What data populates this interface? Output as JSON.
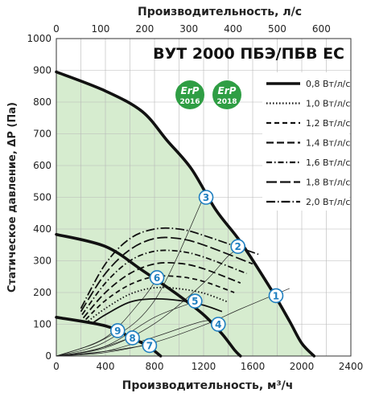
{
  "chart_data": {
    "type": "line",
    "title": "ВУТ 2000 ПБЭ/ПБВ ЕС",
    "xlabel": "Производительность, м³/ч",
    "x2label": "Производительность, л/с",
    "ylabel": "Статическое давление, ΔP (Па)",
    "xlim": [
      0,
      2400
    ],
    "x2lim": [
      0,
      666.7
    ],
    "ylim": [
      0,
      1000
    ],
    "xticks": [
      "0",
      "400",
      "800",
      "1200",
      "1600",
      "2000",
      "2400"
    ],
    "x2ticks": [
      "0",
      "100",
      "200",
      "300",
      "400",
      "500",
      "600"
    ],
    "yticks": [
      "0",
      "100",
      "200",
      "300",
      "400",
      "500",
      "600",
      "700",
      "800",
      "900",
      "1000"
    ],
    "badges": [
      {
        "top": "ErP",
        "bottom": "2016",
        "color": "#2f9e44"
      },
      {
        "top": "ErP",
        "bottom": "2018",
        "color": "#2f9e44"
      }
    ],
    "legend": [
      {
        "label": "0,8 Вт/л/с",
        "dash": "solid"
      },
      {
        "label": "1,0 Вт/л/с",
        "dash": "dotted"
      },
      {
        "label": "1,2 Вт/л/с",
        "dash": "dashed"
      },
      {
        "label": "1,4 Вт/л/с",
        "dash": "longdash"
      },
      {
        "label": "1,6 Вт/л/с",
        "dash": "dashdot"
      },
      {
        "label": "1,8 Вт/л/с",
        "dash": "longlongdash"
      },
      {
        "label": "2,0 Вт/л/с",
        "dash": "longdashdot"
      }
    ],
    "fan_curves": [
      {
        "name": "max",
        "points": [
          [
            0,
            895
          ],
          [
            400,
            835
          ],
          [
            700,
            770
          ],
          [
            900,
            680
          ],
          [
            1100,
            590
          ],
          [
            1300,
            460
          ],
          [
            1500,
            360
          ],
          [
            1750,
            210
          ],
          [
            1900,
            110
          ],
          [
            2000,
            40
          ],
          [
            2100,
            0
          ]
        ]
      },
      {
        "name": "mid",
        "points": [
          [
            0,
            383
          ],
          [
            400,
            345
          ],
          [
            700,
            270
          ],
          [
            1000,
            190
          ],
          [
            1200,
            130
          ],
          [
            1350,
            70
          ],
          [
            1450,
            20
          ],
          [
            1500,
            0
          ]
        ]
      },
      {
        "name": "low",
        "points": [
          [
            0,
            122
          ],
          [
            400,
            95
          ],
          [
            600,
            60
          ],
          [
            750,
            30
          ],
          [
            850,
            0
          ]
        ]
      }
    ],
    "system_curves": [
      {
        "label": "3",
        "points": [
          [
            0,
            0
          ],
          [
            400,
            45
          ],
          [
            800,
            175
          ],
          [
            1200,
            500
          ]
        ]
      },
      {
        "label": "2",
        "points": [
          [
            0,
            0
          ],
          [
            400,
            26
          ],
          [
            800,
            102
          ],
          [
            1200,
            230
          ],
          [
            1400,
            315
          ],
          [
            1500,
            340
          ]
        ]
      },
      {
        "label": "1",
        "points": [
          [
            0,
            0
          ],
          [
            400,
            11
          ],
          [
            800,
            43
          ],
          [
            1200,
            97
          ],
          [
            1500,
            148
          ],
          [
            1900,
            213
          ]
        ]
      },
      {
        "label": "6",
        "points": [
          [
            0,
            0
          ],
          [
            400,
            58
          ],
          [
            700,
            179
          ],
          [
            820,
            245
          ]
        ]
      },
      {
        "label": "5",
        "points": [
          [
            0,
            0
          ],
          [
            400,
            31
          ],
          [
            800,
            122
          ],
          [
            1120,
            170
          ]
        ]
      },
      {
        "label": "4",
        "points": [
          [
            0,
            0
          ],
          [
            400,
            15
          ],
          [
            800,
            60
          ],
          [
            1200,
            110
          ],
          [
            1330,
            100
          ]
        ]
      },
      {
        "label": "9",
        "points": [
          [
            0,
            0
          ],
          [
            300,
            37
          ],
          [
            500,
            78
          ]
        ]
      },
      {
        "label": "8",
        "points": [
          [
            0,
            0
          ],
          [
            300,
            18
          ],
          [
            600,
            57
          ]
        ]
      },
      {
        "label": "7",
        "points": [
          [
            0,
            0
          ],
          [
            400,
            15
          ],
          [
            750,
            35
          ]
        ]
      }
    ],
    "markers": [
      {
        "label": "1",
        "x": 1790,
        "y": 190
      },
      {
        "label": "2",
        "x": 1480,
        "y": 345
      },
      {
        "label": "3",
        "x": 1220,
        "y": 500
      },
      {
        "label": "4",
        "x": 1320,
        "y": 100
      },
      {
        "label": "5",
        "x": 1130,
        "y": 173
      },
      {
        "label": "6",
        "x": 820,
        "y": 247
      },
      {
        "label": "7",
        "x": 760,
        "y": 33
      },
      {
        "label": "8",
        "x": 620,
        "y": 57
      },
      {
        "label": "9",
        "x": 500,
        "y": 80
      }
    ],
    "efficiency_curves": [
      {
        "label": "0,8 Вт/л/с",
        "dash": "solid",
        "points": [
          [
            300,
            105
          ],
          [
            400,
            130
          ],
          [
            600,
            170
          ],
          [
            800,
            180
          ],
          [
            1000,
            175
          ],
          [
            1200,
            160
          ],
          [
            1350,
            140
          ]
        ]
      },
      {
        "label": "1,0 Вт/л/с",
        "dash": "dotted",
        "points": [
          [
            260,
            110
          ],
          [
            400,
            150
          ],
          [
            600,
            195
          ],
          [
            800,
            215
          ],
          [
            1000,
            212
          ],
          [
            1200,
            198
          ],
          [
            1400,
            170
          ]
        ]
      },
      {
        "label": "1,2 Вт/л/с",
        "dash": "dashed",
        "points": [
          [
            240,
            115
          ],
          [
            400,
            175
          ],
          [
            600,
            225
          ],
          [
            800,
            250
          ],
          [
            1000,
            250
          ],
          [
            1200,
            235
          ],
          [
            1450,
            200
          ]
        ]
      },
      {
        "label": "1,4 Вт/л/с",
        "dash": "longdash",
        "points": [
          [
            220,
            120
          ],
          [
            400,
            200
          ],
          [
            600,
            260
          ],
          [
            800,
            290
          ],
          [
            1000,
            292
          ],
          [
            1200,
            275
          ],
          [
            1500,
            230
          ]
        ]
      },
      {
        "label": "1,6 Вт/л/с",
        "dash": "dashdot",
        "points": [
          [
            210,
            130
          ],
          [
            400,
            230
          ],
          [
            600,
            300
          ],
          [
            800,
            330
          ],
          [
            1000,
            330
          ],
          [
            1200,
            312
          ],
          [
            1550,
            260
          ]
        ]
      },
      {
        "label": "1,8 Вт/л/с",
        "dash": "longlongdash",
        "points": [
          [
            200,
            140
          ],
          [
            400,
            260
          ],
          [
            600,
            335
          ],
          [
            800,
            370
          ],
          [
            1000,
            370
          ],
          [
            1200,
            350
          ],
          [
            1600,
            290
          ]
        ]
      },
      {
        "label": "2,0 Вт/л/с",
        "dash": "longdashdot",
        "points": [
          [
            200,
            150
          ],
          [
            400,
            290
          ],
          [
            600,
            370
          ],
          [
            800,
            400
          ],
          [
            1000,
            400
          ],
          [
            1200,
            380
          ],
          [
            1650,
            320
          ]
        ]
      }
    ],
    "colors": {
      "fill": "#d6eccf",
      "grid": "#b8b8b8",
      "curve": "#111111",
      "marker_fill": "#ffffff",
      "marker_stroke": "#1f7fc0",
      "marker_text": "#1f7fc0"
    }
  }
}
